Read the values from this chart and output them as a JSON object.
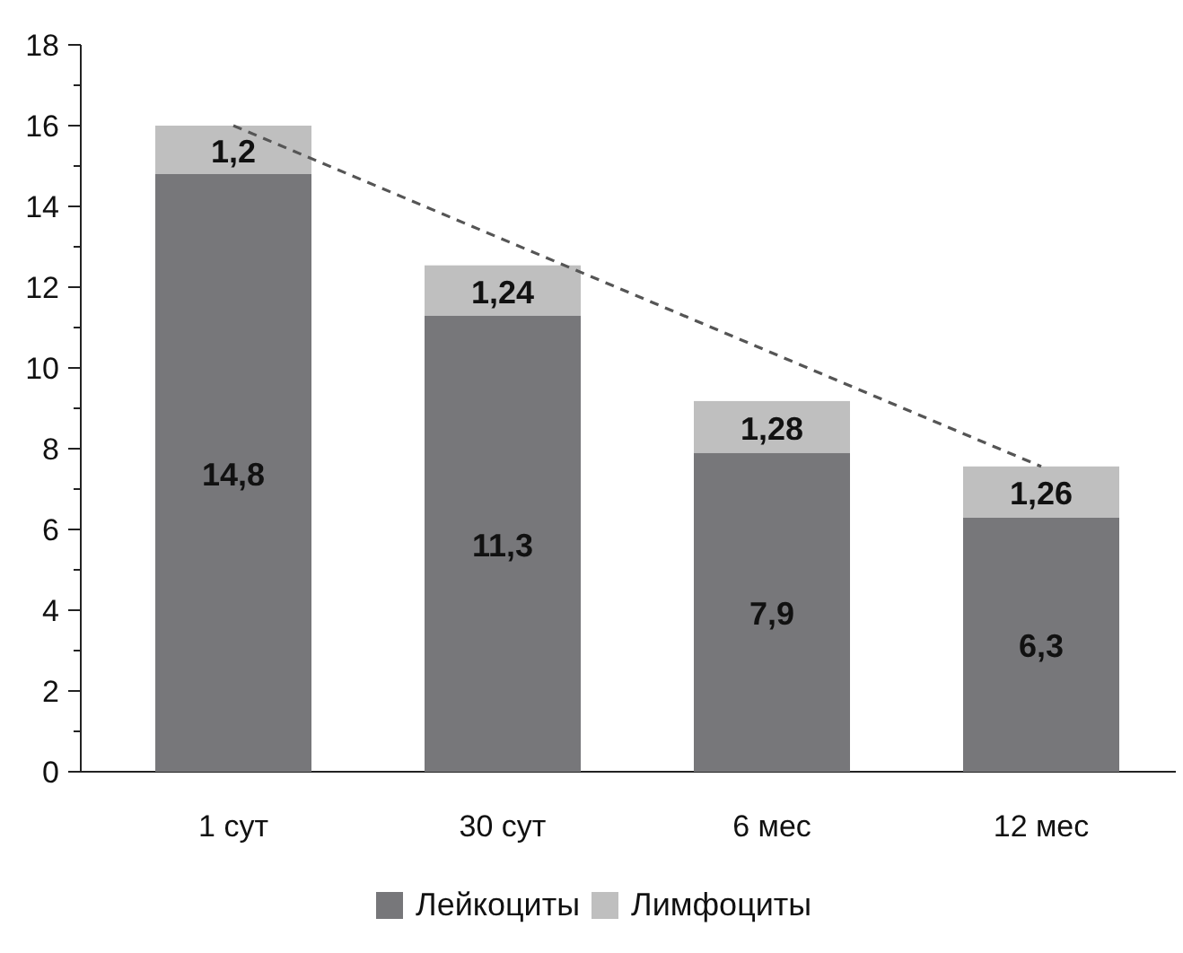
{
  "chart_data": {
    "type": "bar",
    "stacked": true,
    "categories": [
      "1 сут",
      "30 сут",
      "6 мес",
      "12 мес"
    ],
    "series": [
      {
        "name": "Лейкоциты",
        "color": "#77777a",
        "values": [
          14.8,
          11.3,
          7.9,
          6.3
        ],
        "value_labels": [
          "14,8",
          "11,3",
          "7,9",
          "6,3"
        ]
      },
      {
        "name": "Лимфоциты",
        "color": "#bfbfbf",
        "values": [
          1.2,
          1.24,
          1.28,
          1.26
        ],
        "value_labels": [
          "1,2",
          "1,24",
          "1,28",
          "1,26"
        ]
      },
      {
        "type": "line",
        "color": "#555555",
        "line_style": "dashed",
        "x": [
          "1 сут",
          "12 мес"
        ],
        "values": [
          16,
          7.56
        ]
      }
    ],
    "ylim": [
      0,
      18
    ],
    "yticks": [
      0,
      {
        "value": 1,
        "label": null
      },
      2,
      {
        "value": 3,
        "label": null
      },
      4,
      {
        "value": 5,
        "label": null
      },
      6,
      {
        "value": 7,
        "label": null
      },
      8,
      {
        "value": 9,
        "label": null
      },
      10,
      {
        "value": 11,
        "label": null
      },
      12,
      {
        "value": 13,
        "label": null
      },
      14,
      {
        "value": 15,
        "label": null
      },
      16,
      {
        "value": 17,
        "label": null
      },
      18
    ],
    "grid": false,
    "legend": "bottom"
  }
}
